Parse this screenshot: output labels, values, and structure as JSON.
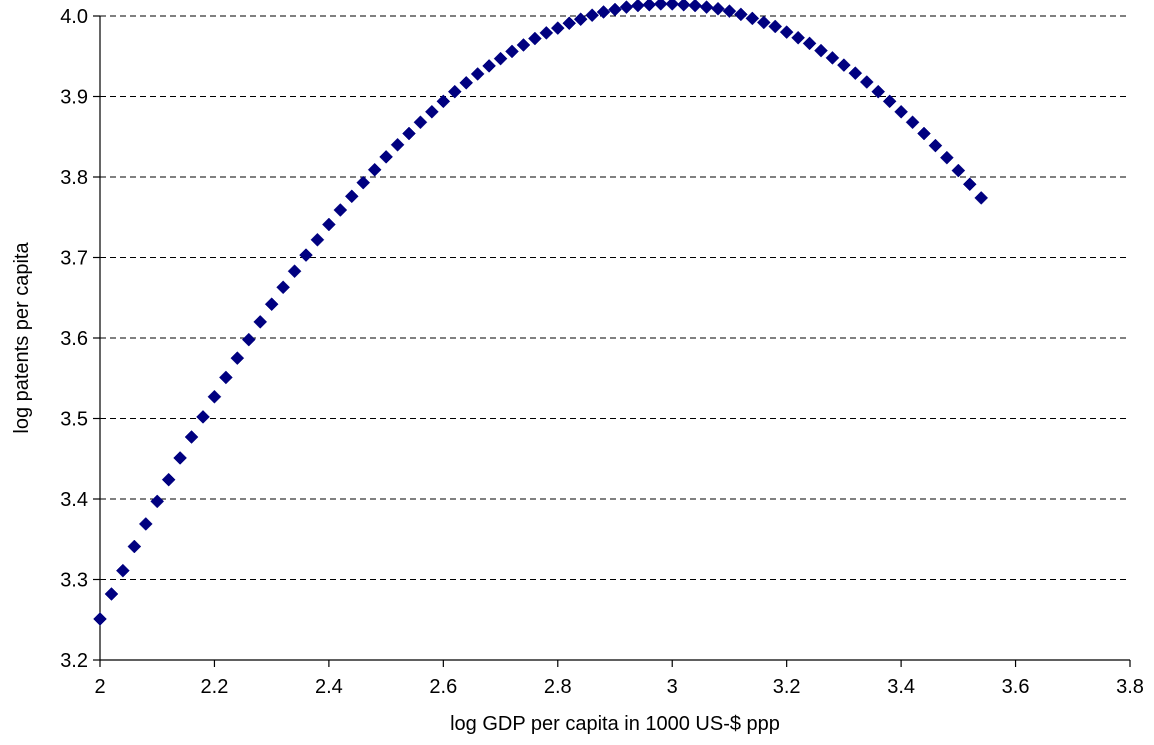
{
  "chart_data": {
    "type": "scatter",
    "title": "",
    "xlabel": "log GDP per capita in 1000 US-$ ppp",
    "ylabel": "log patents per capita",
    "xlim": [
      2,
      3.8
    ],
    "ylim": [
      3.2,
      4.0
    ],
    "x_ticks": [
      "2",
      "2.2",
      "2.4",
      "2.6",
      "2.8",
      "3",
      "3.2",
      "3.4",
      "3.6",
      "3.8"
    ],
    "y_ticks": [
      "3.2",
      "3.3",
      "3.4",
      "3.5",
      "3.6",
      "3.7",
      "3.8",
      "3.9",
      "4.0"
    ],
    "grid": "horizontal-dashed",
    "legend": "none",
    "marker": "diamond",
    "color": "#000080",
    "series": [
      {
        "x": [
          2.0,
          2.02,
          2.04,
          2.06,
          2.08,
          2.1,
          2.12,
          2.14,
          2.16,
          2.18,
          2.2,
          2.22,
          2.24,
          2.26,
          2.28,
          2.3,
          2.32,
          2.34,
          2.36,
          2.38,
          2.4,
          2.42,
          2.44,
          2.46,
          2.48,
          2.5,
          2.52,
          2.54,
          2.56,
          2.58,
          2.6,
          2.62,
          2.64,
          2.66,
          2.68,
          2.7,
          2.72,
          2.74,
          2.76,
          2.78,
          2.8,
          2.82,
          2.84,
          2.86,
          2.88,
          2.9,
          2.92,
          2.94,
          2.96,
          2.98,
          3.0,
          3.02,
          3.04,
          3.06,
          3.08,
          3.1,
          3.12,
          3.14,
          3.16,
          3.18,
          3.2,
          3.22,
          3.24,
          3.26,
          3.28,
          3.3,
          3.32,
          3.34,
          3.36,
          3.38,
          3.4,
          3.42,
          3.44,
          3.46,
          3.48,
          3.5,
          3.52,
          3.54
        ],
        "y": [
          3.251,
          3.282,
          3.311,
          3.341,
          3.369,
          3.397,
          3.424,
          3.451,
          3.477,
          3.502,
          3.527,
          3.551,
          3.575,
          3.598,
          3.62,
          3.642,
          3.663,
          3.683,
          3.703,
          3.722,
          3.741,
          3.759,
          3.776,
          3.793,
          3.809,
          3.825,
          3.84,
          3.854,
          3.868,
          3.881,
          3.894,
          3.906,
          3.917,
          3.928,
          3.938,
          3.947,
          3.956,
          3.964,
          3.972,
          3.979,
          3.985,
          3.991,
          3.996,
          4.001,
          4.005,
          4.008,
          4.011,
          4.013,
          4.014,
          4.015,
          4.015,
          4.014,
          4.013,
          4.011,
          4.009,
          4.006,
          4.002,
          3.997,
          3.992,
          3.987,
          3.98,
          3.973,
          3.966,
          3.957,
          3.948,
          3.939,
          3.929,
          3.918,
          3.906,
          3.894,
          3.881,
          3.868,
          3.854,
          3.839,
          3.824,
          3.808,
          3.791,
          3.774
        ]
      }
    ]
  }
}
